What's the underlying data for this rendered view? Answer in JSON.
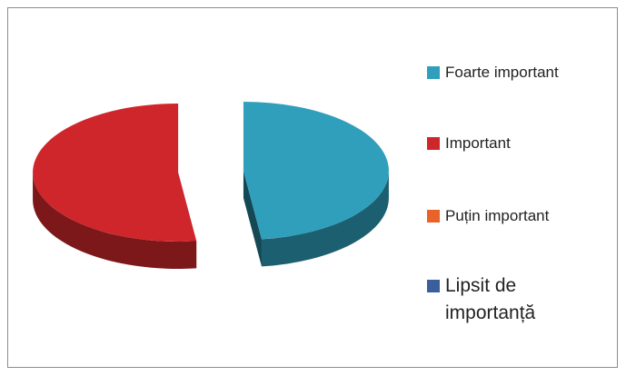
{
  "chart_data": {
    "type": "pie",
    "categories": [
      "Foarte important",
      "Important",
      "Puțin important",
      "Lipsit de importanță"
    ],
    "values": [
      48,
      52,
      0,
      0
    ],
    "colors": [
      "#2f9fbc",
      "#cf262c",
      "#e8622a",
      "#3a5f9c"
    ],
    "legend": "right"
  }
}
